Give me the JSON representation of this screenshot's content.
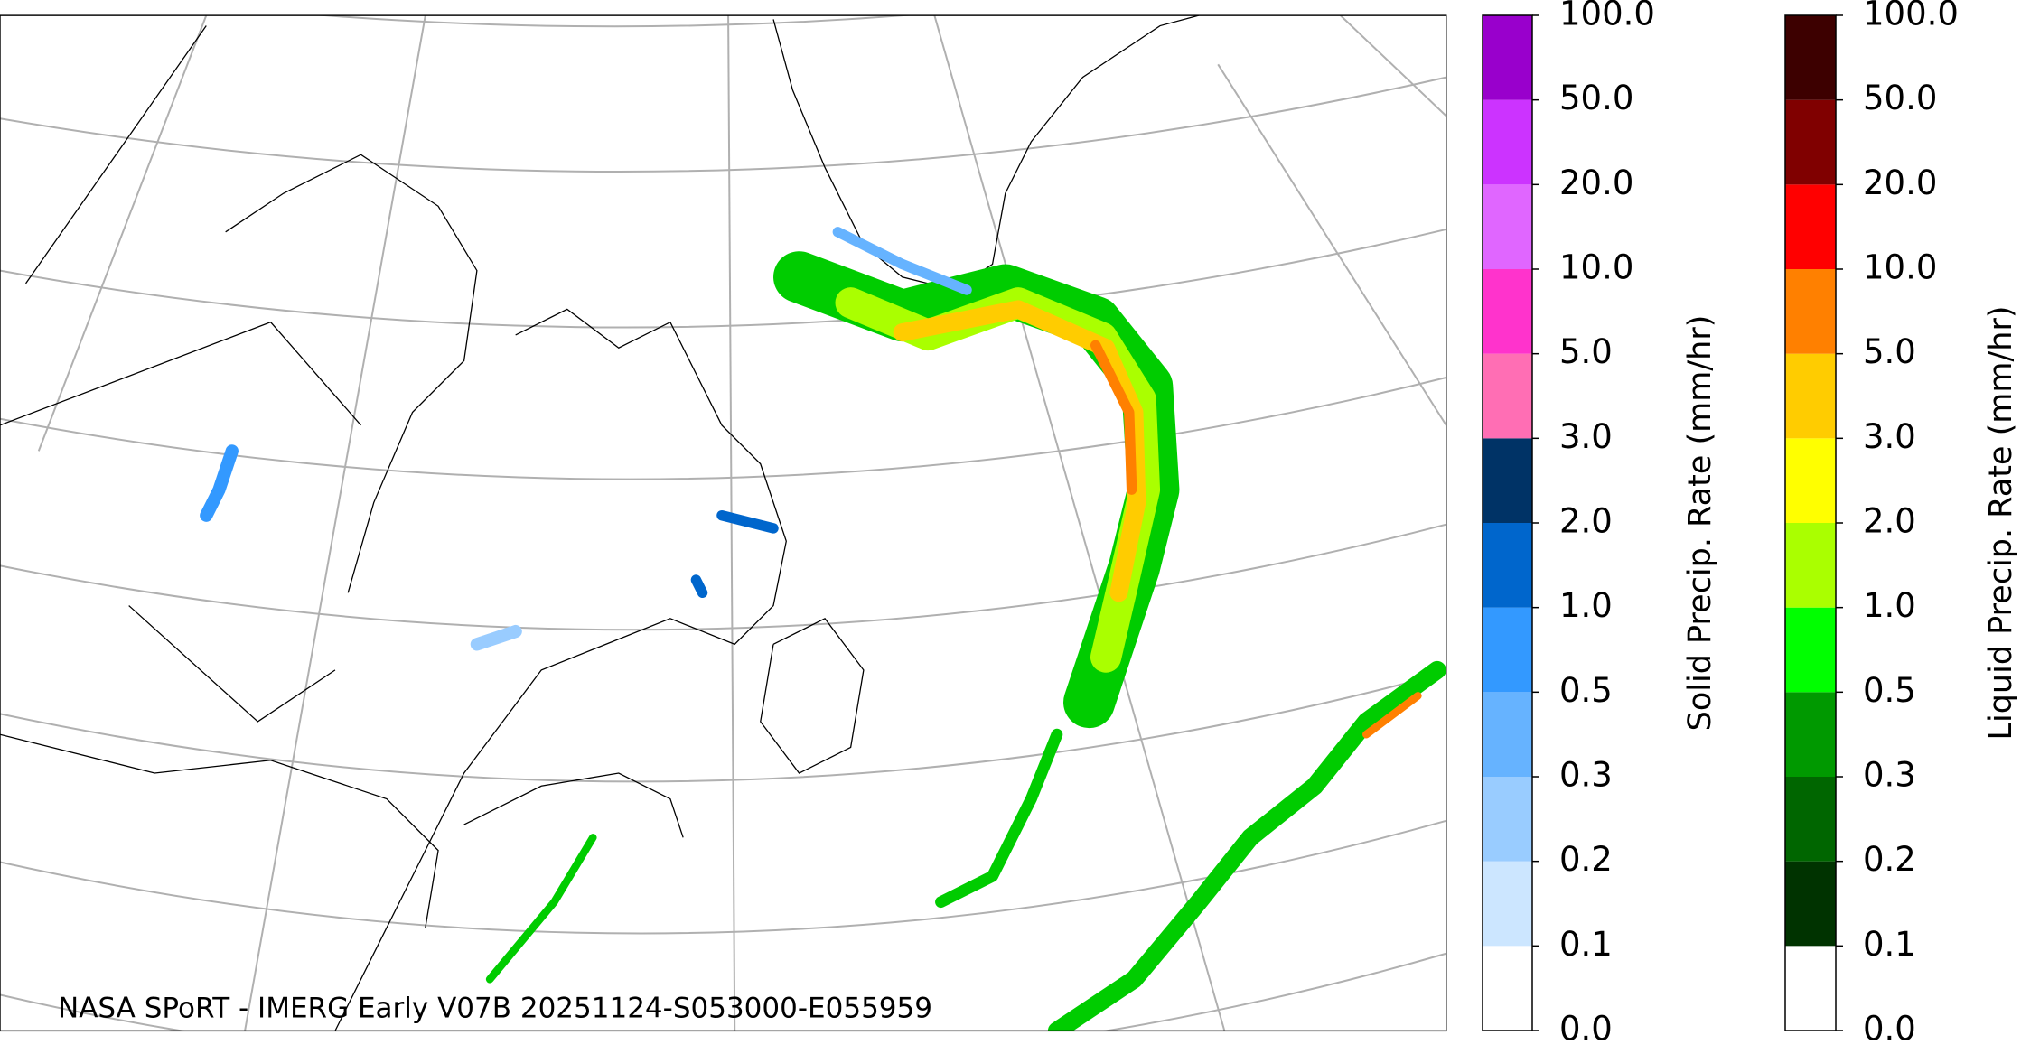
{
  "map": {
    "footer": "NASA SPoRT - IMERG Early V07B 20251124-S053000-E055959"
  },
  "colorbars": [
    {
      "label": "Solid Precip. Rate (mm/hr)",
      "ticks": [
        {
          "value": 0,
          "label": "0.0"
        },
        {
          "value": 0.1,
          "label": "0.1"
        },
        {
          "value": 0.2,
          "label": "0.2"
        },
        {
          "value": 0.3,
          "label": "0.3"
        },
        {
          "value": 0.5,
          "label": "0.5"
        },
        {
          "value": 1,
          "label": "1.0"
        },
        {
          "value": 2,
          "label": "2.0"
        },
        {
          "value": 3,
          "label": "3.0"
        },
        {
          "value": 5,
          "label": "5.0"
        },
        {
          "value": 10,
          "label": "10.0"
        },
        {
          "value": 20,
          "label": "20.0"
        },
        {
          "value": 50,
          "label": "50.0"
        },
        {
          "value": 100,
          "label": "100.0"
        }
      ],
      "colors": [
        "#ffffff",
        "#cce6ff",
        "#99ccff",
        "#66b3ff",
        "#3399ff",
        "#0066cc",
        "#003366",
        "#ff6eb4",
        "#ff33cc",
        "#e066ff",
        "#cc33ff",
        "#9900cc"
      ]
    },
    {
      "label": "Liquid Precip. Rate (mm/hr)",
      "ticks": [
        {
          "value": 0,
          "label": "0.0"
        },
        {
          "value": 0.1,
          "label": "0.1"
        },
        {
          "value": 0.2,
          "label": "0.2"
        },
        {
          "value": 0.3,
          "label": "0.3"
        },
        {
          "value": 0.5,
          "label": "0.5"
        },
        {
          "value": 1,
          "label": "1.0"
        },
        {
          "value": 2,
          "label": "2.0"
        },
        {
          "value": 3,
          "label": "3.0"
        },
        {
          "value": 5,
          "label": "5.0"
        },
        {
          "value": 10,
          "label": "10.0"
        },
        {
          "value": 20,
          "label": "20.0"
        },
        {
          "value": 50,
          "label": "50.0"
        },
        {
          "value": 100,
          "label": "100.0"
        }
      ],
      "colors": [
        "#ffffff",
        "#003300",
        "#006600",
        "#009900",
        "#00ff00",
        "#aaff00",
        "#ffff00",
        "#ffcc00",
        "#ff8000",
        "#ff0000",
        "#800000",
        "#3d0000"
      ]
    }
  ]
}
